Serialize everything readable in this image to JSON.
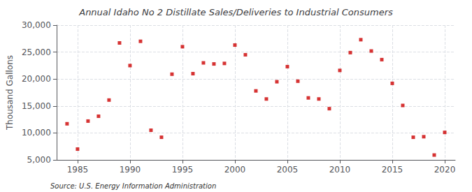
{
  "chart_data": {
    "type": "scatter",
    "title": "Annual Idaho No 2 Distillate Sales/Deliveries to Industrial Consumers",
    "ylabel": "Thousand Gallons",
    "annotations": [
      "Source: U.S. Energy Information Administration"
    ],
    "x": [
      1984,
      1985,
      1986,
      1987,
      1988,
      1989,
      1990,
      1991,
      1992,
      1993,
      1994,
      1995,
      1996,
      1997,
      1998,
      1999,
      2000,
      2001,
      2002,
      2003,
      2004,
      2005,
      2006,
      2007,
      2008,
      2009,
      2010,
      2011,
      2012,
      2013,
      2014,
      2015,
      2016,
      2017,
      2018,
      2019,
      2020
    ],
    "values": [
      11700,
      7000,
      12200,
      13100,
      16100,
      26700,
      22500,
      27000,
      10500,
      9200,
      20900,
      26000,
      21000,
      23000,
      22800,
      22900,
      26300,
      24500,
      17800,
      16300,
      19500,
      22300,
      19600,
      16500,
      16300,
      14500,
      21600,
      24900,
      27300,
      25200,
      23600,
      19200,
      15100,
      9200,
      9300,
      5900,
      10100
    ],
    "color": "#cc0000",
    "marker": "square",
    "xlim": [
      1983,
      2021
    ],
    "xticks": [
      1985,
      1990,
      1995,
      2000,
      2005,
      2010,
      2015,
      2020
    ],
    "ylim": [
      5000,
      30000
    ],
    "yticks": [
      {
        "value": 5000,
        "label": "5,000"
      },
      {
        "value": 10000,
        "label": "10,000"
      },
      {
        "value": 15000,
        "label": "15,000"
      },
      {
        "value": 20000,
        "label": "20,000"
      },
      {
        "value": 25000,
        "label": "25,000"
      },
      {
        "value": 30000,
        "label": "30,000"
      }
    ],
    "grid": true
  }
}
